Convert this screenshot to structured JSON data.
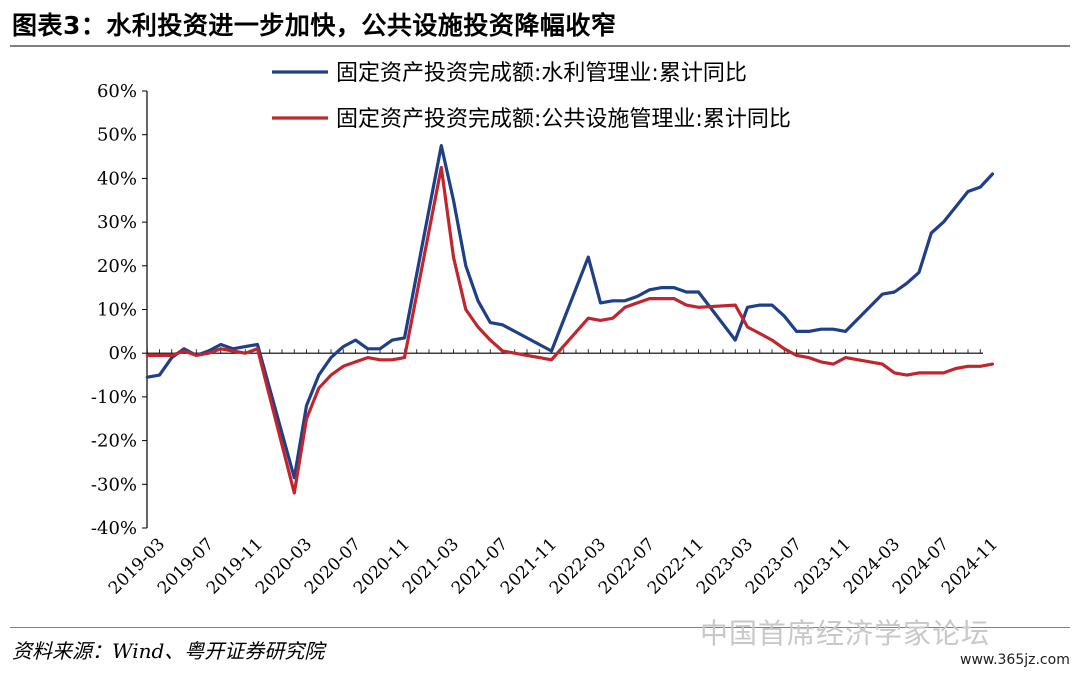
{
  "header": {
    "title": "图表3：水利投资进一步加快，公共设施投资降幅收窄"
  },
  "footer": {
    "source": "资料来源：Wind、粤开证券研究院"
  },
  "watermark": {
    "text": "中国首席经济学家论坛",
    "url": "www.365jz.com"
  },
  "colors": {
    "series_blue": "#1f3f86",
    "series_red": "#c0262e",
    "axis": "#000000"
  },
  "chart_data": {
    "type": "line",
    "title": "",
    "xlabel": "",
    "ylabel": "",
    "ylim": [
      -40,
      60
    ],
    "y_unit": "%",
    "y_ticks": [
      "60%",
      "50%",
      "40%",
      "30%",
      "20%",
      "10%",
      "0%",
      "-10%",
      "-20%",
      "-30%",
      "-40%"
    ],
    "y_tick_values": [
      60,
      50,
      40,
      30,
      20,
      10,
      0,
      -10,
      -20,
      -30,
      -40
    ],
    "x_tick_labels": [
      "2019-03",
      "2019-07",
      "2019-11",
      "2020-03",
      "2020-07",
      "2020-11",
      "2021-03",
      "2021-07",
      "2021-11",
      "2022-03",
      "2022-07",
      "2022-11",
      "2023-03",
      "2023-07",
      "2023-11",
      "2024-03",
      "2024-07",
      "2024-11"
    ],
    "legend_position": "top",
    "grid": false,
    "x": [
      "2019-02",
      "2019-03",
      "2019-04",
      "2019-05",
      "2019-06",
      "2019-07",
      "2019-08",
      "2019-09",
      "2019-10",
      "2019-11",
      "2019-12",
      "2020-01",
      "2020-02",
      "2020-03",
      "2020-04",
      "2020-05",
      "2020-06",
      "2020-07",
      "2020-08",
      "2020-09",
      "2020-10",
      "2020-11",
      "2020-12",
      "2021-01",
      "2021-02",
      "2021-03",
      "2021-04",
      "2021-05",
      "2021-06",
      "2021-07",
      "2021-08",
      "2021-09",
      "2021-10",
      "2021-11",
      "2021-12",
      "2022-01",
      "2022-02",
      "2022-03",
      "2022-04",
      "2022-05",
      "2022-06",
      "2022-07",
      "2022-08",
      "2022-09",
      "2022-10",
      "2022-11",
      "2022-12",
      "2023-01",
      "2023-02",
      "2023-03",
      "2023-04",
      "2023-05",
      "2023-06",
      "2023-07",
      "2023-08",
      "2023-09",
      "2023-10",
      "2023-11",
      "2023-12",
      "2024-01",
      "2024-02",
      "2024-03",
      "2024-04",
      "2024-05",
      "2024-06",
      "2024-07",
      "2024-08",
      "2024-09",
      "2024-10",
      "2024-11",
      "2024-12"
    ],
    "series": [
      {
        "name": "固定资产投资完成额:水利管理业:累计同比",
        "color": "#1f3f86",
        "values": [
          -5.5,
          -5.0,
          -1.0,
          1.0,
          -0.5,
          0.5,
          2.0,
          1.0,
          1.5,
          2.0,
          null,
          null,
          -28.5,
          -12.0,
          -5.0,
          -1.0,
          1.5,
          3.0,
          1.0,
          1.0,
          3.0,
          3.5,
          null,
          null,
          47.5,
          35.0,
          20.0,
          12.0,
          7.0,
          6.5,
          5.0,
          3.5,
          2.0,
          0.5,
          null,
          null,
          22.0,
          11.5,
          12.0,
          12.0,
          13.0,
          14.5,
          15.0,
          15.0,
          14.0,
          14.0,
          null,
          null,
          3.0,
          10.5,
          11.0,
          11.0,
          8.5,
          5.0,
          5.0,
          5.5,
          5.5,
          5.0,
          null,
          null,
          13.5,
          14.0,
          16.0,
          18.5,
          27.5,
          30.0,
          33.5,
          37.0,
          38.0,
          41.0,
          null
        ]
      },
      {
        "name": "固定资产投资完成额:公共设施管理业:累计同比",
        "color": "#c0262e",
        "values": [
          -0.5,
          -0.5,
          -0.5,
          0.5,
          -0.5,
          0.0,
          1.0,
          0.5,
          0.0,
          1.0,
          null,
          null,
          -32.0,
          -15.0,
          -8.0,
          -5.0,
          -3.0,
          -2.0,
          -1.0,
          -1.5,
          -1.5,
          -1.0,
          null,
          null,
          42.5,
          22.0,
          10.0,
          6.0,
          3.0,
          0.5,
          0.0,
          -0.5,
          -1.0,
          -1.5,
          null,
          null,
          8.0,
          7.5,
          8.0,
          10.5,
          11.5,
          12.5,
          12.5,
          12.5,
          11.0,
          10.5,
          null,
          null,
          11.0,
          6.0,
          4.5,
          3.0,
          1.0,
          -0.5,
          -1.0,
          -2.0,
          -2.5,
          -1.0,
          null,
          null,
          -2.5,
          -4.5,
          -5.0,
          -4.5,
          -4.5,
          -4.5,
          -3.5,
          -3.0,
          -3.0,
          -2.5,
          null
        ]
      }
    ]
  }
}
